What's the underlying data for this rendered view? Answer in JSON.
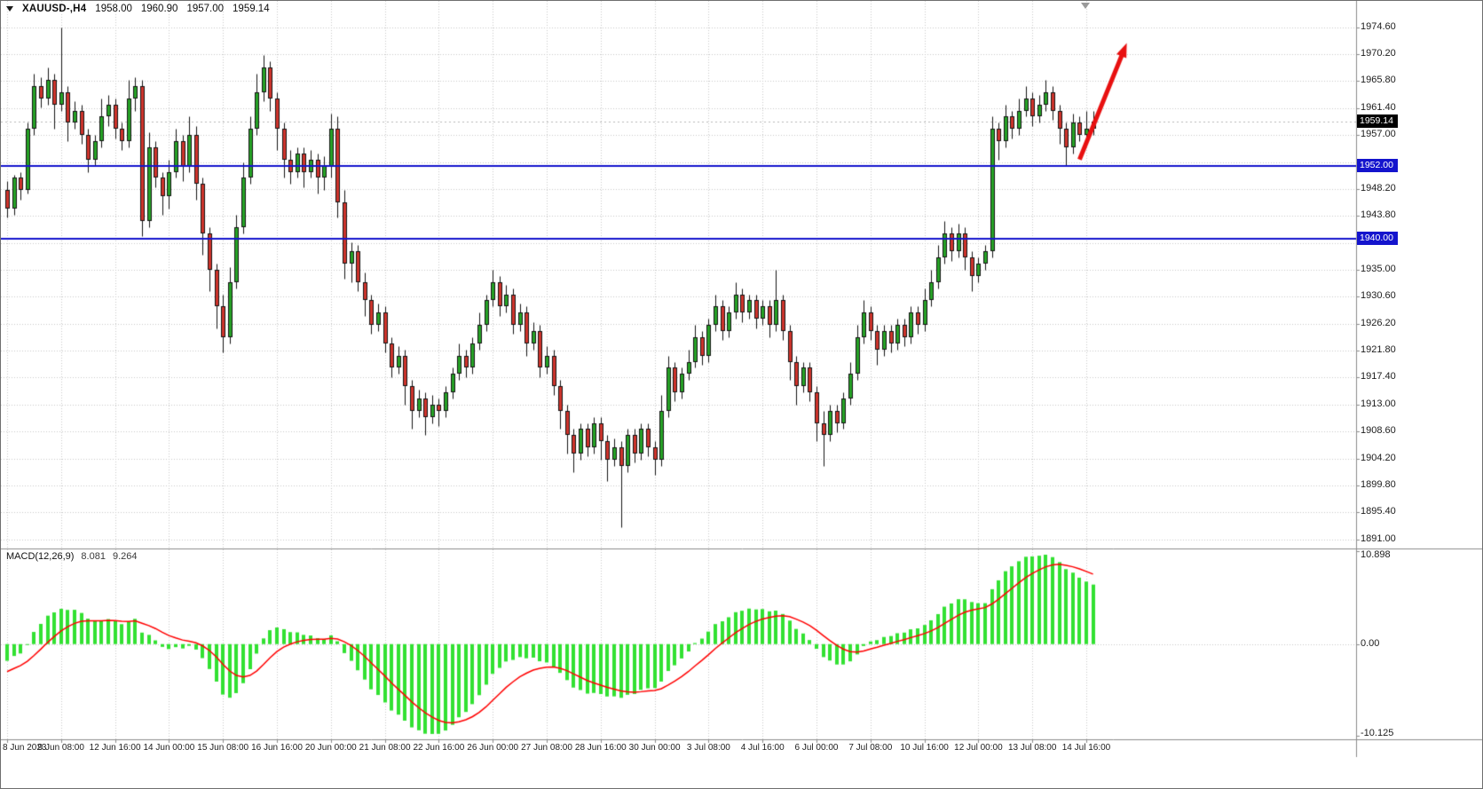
{
  "header": {
    "symbol": "XAUUSD-,H4",
    "open": "1958.00",
    "high": "1960.90",
    "low": "1957.00",
    "close": "1959.14"
  },
  "icons": {
    "chart_menu": "triangle-down",
    "shift_marker": "triangle-down"
  },
  "colors": {
    "bull": "#26a326",
    "bear": "#d0342c",
    "wick": "#141414",
    "grid": "#c8c8c8",
    "hline": "#1414cd",
    "arrow": "#e81010",
    "macd_hist": "#32e132",
    "macd_signal": "#ff0000",
    "axis_text": "#1c1c1c",
    "bid_line": "#b8b8b8",
    "current_tag_bg": "#000000",
    "axis_line": "#8c8c8c"
  },
  "chart_data": {
    "type": "candlestick",
    "title": "XAUUSD- H4 candlestick chart with MACD",
    "symbol": "XAUUSD-",
    "timeframe": "H4",
    "price_axis": {
      "max": 1978.9,
      "min": 1889.5,
      "ticks": [
        1974.6,
        1970.2,
        1965.8,
        1961.4,
        1957.0,
        1952.6,
        1948.2,
        1943.8,
        1939.4,
        1935.0,
        1930.6,
        1926.2,
        1921.8,
        1917.4,
        1913.0,
        1908.6,
        1904.2,
        1899.8,
        1895.4,
        1891.0
      ]
    },
    "time_axis": {
      "labels": [
        {
          "bar": 0,
          "text": "8 Jun 2023"
        },
        {
          "bar": 8,
          "text": "9 Jun 08:00"
        },
        {
          "bar": 16,
          "text": "12 Jun 16:00"
        },
        {
          "bar": 24,
          "text": "14 Jun 00:00"
        },
        {
          "bar": 32,
          "text": "15 Jun 08:00"
        },
        {
          "bar": 40,
          "text": "16 Jun 16:00"
        },
        {
          "bar": 48,
          "text": "20 Jun 00:00"
        },
        {
          "bar": 56,
          "text": "21 Jun 08:00"
        },
        {
          "bar": 64,
          "text": "22 Jun 16:00"
        },
        {
          "bar": 72,
          "text": "26 Jun 00:00"
        },
        {
          "bar": 80,
          "text": "27 Jun 08:00"
        },
        {
          "bar": 88,
          "text": "28 Jun 16:00"
        },
        {
          "bar": 96,
          "text": "30 Jun 00:00"
        },
        {
          "bar": 104,
          "text": "3 Jul 08:00"
        },
        {
          "bar": 112,
          "text": "4 Jul 16:00"
        },
        {
          "bar": 120,
          "text": "6 Jul 00:00"
        },
        {
          "bar": 128,
          "text": "7 Jul 08:00"
        },
        {
          "bar": 136,
          "text": "10 Jul 16:00"
        },
        {
          "bar": 144,
          "text": "12 Jul 00:00"
        },
        {
          "bar": 152,
          "text": "13 Jul 08:00"
        },
        {
          "bar": 160,
          "text": "14 Jul 16:00"
        }
      ]
    },
    "candles": [
      [
        1948,
        1949.5,
        1943.5,
        1945
      ],
      [
        1945,
        1950.5,
        1944,
        1950
      ],
      [
        1950,
        1951,
        1946.5,
        1948
      ],
      [
        1948,
        1959,
        1947.5,
        1958
      ],
      [
        1958,
        1967,
        1957,
        1965
      ],
      [
        1965,
        1966.5,
        1961.5,
        1963
      ],
      [
        1963,
        1968,
        1962,
        1966
      ],
      [
        1966,
        1967,
        1958,
        1962
      ],
      [
        1962,
        1974.5,
        1961,
        1964
      ],
      [
        1964,
        1965,
        1956,
        1959
      ],
      [
        1959,
        1962.5,
        1958,
        1961
      ],
      [
        1961,
        1962,
        1955.5,
        1957
      ],
      [
        1957,
        1958,
        1951,
        1953
      ],
      [
        1953,
        1957,
        1952,
        1956
      ],
      [
        1956,
        1963,
        1955,
        1960
      ],
      [
        1960,
        1963.5,
        1958.5,
        1962
      ],
      [
        1962,
        1963,
        1956.5,
        1958
      ],
      [
        1958,
        1959,
        1954.5,
        1956
      ],
      [
        1956,
        1966,
        1955,
        1963
      ],
      [
        1963,
        1966.5,
        1961,
        1965
      ],
      [
        1965,
        1966,
        1940.5,
        1943
      ],
      [
        1943,
        1957.5,
        1942,
        1955
      ],
      [
        1955,
        1956,
        1948.5,
        1950
      ],
      [
        1950,
        1951,
        1944,
        1947
      ],
      [
        1947,
        1953,
        1945,
        1951
      ],
      [
        1951,
        1958,
        1950,
        1956
      ],
      [
        1956,
        1957,
        1949.5,
        1952
      ],
      [
        1952,
        1960,
        1951,
        1957
      ],
      [
        1957,
        1958.5,
        1946.5,
        1949
      ],
      [
        1949,
        1950,
        1937.5,
        1941
      ],
      [
        1941,
        1942,
        1931.5,
        1935
      ],
      [
        1935,
        1936,
        1925.5,
        1929
      ],
      [
        1929,
        1931,
        1921.5,
        1924
      ],
      [
        1924,
        1935.5,
        1923,
        1933
      ],
      [
        1933,
        1944,
        1932,
        1942
      ],
      [
        1942,
        1952.5,
        1941,
        1950
      ],
      [
        1950,
        1960,
        1949,
        1958
      ],
      [
        1958,
        1967,
        1957,
        1964
      ],
      [
        1964,
        1970,
        1962.5,
        1968
      ],
      [
        1968,
        1969,
        1961,
        1963
      ],
      [
        1963,
        1964,
        1954.5,
        1958
      ],
      [
        1958,
        1959,
        1950,
        1953
      ],
      [
        1953,
        1954.5,
        1949,
        1951
      ],
      [
        1951,
        1955,
        1950,
        1954
      ],
      [
        1954,
        1955,
        1948.5,
        1951
      ],
      [
        1951,
        1954.5,
        1950,
        1953
      ],
      [
        1953,
        1954,
        1947.5,
        1950
      ],
      [
        1950,
        1953.5,
        1948,
        1952
      ],
      [
        1952,
        1960.5,
        1950,
        1958
      ],
      [
        1958,
        1960,
        1943.5,
        1946
      ],
      [
        1946,
        1948,
        1933.5,
        1936
      ],
      [
        1936,
        1939.5,
        1933,
        1938
      ],
      [
        1938,
        1939,
        1931.5,
        1933
      ],
      [
        1933,
        1934.5,
        1927.5,
        1930
      ],
      [
        1930,
        1931,
        1924.5,
        1926
      ],
      [
        1926,
        1929.5,
        1925,
        1928
      ],
      [
        1928,
        1929,
        1921.5,
        1923
      ],
      [
        1923,
        1924,
        1917.5,
        1919
      ],
      [
        1919,
        1922.5,
        1918,
        1921
      ],
      [
        1921,
        1922,
        1913,
        1916
      ],
      [
        1916,
        1917,
        1909,
        1912
      ],
      [
        1912,
        1915.5,
        1911,
        1914
      ],
      [
        1914,
        1915,
        1908,
        1911
      ],
      [
        1911,
        1914.5,
        1910,
        1913
      ],
      [
        1913,
        1914,
        1909.5,
        1912
      ],
      [
        1912,
        1916,
        1911,
        1915
      ],
      [
        1915,
        1919,
        1914,
        1918
      ],
      [
        1918,
        1923,
        1917,
        1921
      ],
      [
        1921,
        1922,
        1917.5,
        1919
      ],
      [
        1919,
        1924,
        1918,
        1923
      ],
      [
        1923,
        1928,
        1922,
        1926
      ],
      [
        1926,
        1931,
        1925,
        1930
      ],
      [
        1930,
        1935,
        1929,
        1933
      ],
      [
        1933,
        1934,
        1927.5,
        1929
      ],
      [
        1929,
        1932.5,
        1928,
        1931
      ],
      [
        1931,
        1932,
        1924.5,
        1926
      ],
      [
        1926,
        1929.5,
        1925,
        1928
      ],
      [
        1928,
        1929,
        1921,
        1923
      ],
      [
        1923,
        1926.5,
        1922,
        1925
      ],
      [
        1925,
        1926,
        1917.5,
        1919
      ],
      [
        1919,
        1922.5,
        1918,
        1921
      ],
      [
        1921,
        1922,
        1914.5,
        1916
      ],
      [
        1916,
        1917,
        1909,
        1912
      ],
      [
        1912,
        1913,
        1905,
        1908
      ],
      [
        1908,
        1909,
        1902,
        1905
      ],
      [
        1905,
        1910,
        1904,
        1909
      ],
      [
        1909,
        1910,
        1904.5,
        1906
      ],
      [
        1906,
        1911,
        1905,
        1910
      ],
      [
        1910,
        1911,
        1904,
        1907
      ],
      [
        1907,
        1908,
        1900.5,
        1904
      ],
      [
        1904,
        1907.5,
        1903,
        1906
      ],
      [
        1906,
        1907,
        1893,
        1903
      ],
      [
        1903,
        1909,
        1902,
        1908
      ],
      [
        1908,
        1909,
        1903.5,
        1905
      ],
      [
        1905,
        1910,
        1904,
        1909
      ],
      [
        1909,
        1910,
        1904.5,
        1906
      ],
      [
        1906,
        1907,
        1901.5,
        1904
      ],
      [
        1904,
        1914.5,
        1903,
        1912
      ],
      [
        1912,
        1921,
        1911,
        1919
      ],
      [
        1919,
        1920,
        1913.5,
        1915
      ],
      [
        1915,
        1919,
        1914,
        1918
      ],
      [
        1918,
        1922,
        1917,
        1920
      ],
      [
        1920,
        1926,
        1919,
        1924
      ],
      [
        1924,
        1925,
        1919.5,
        1921
      ],
      [
        1921,
        1927,
        1920,
        1926
      ],
      [
        1926,
        1931,
        1925,
        1929
      ],
      [
        1929,
        1930,
        1923.5,
        1925
      ],
      [
        1925,
        1929,
        1924,
        1928
      ],
      [
        1928,
        1933,
        1927,
        1931
      ],
      [
        1931,
        1932,
        1926.5,
        1928
      ],
      [
        1928,
        1931,
        1927,
        1930
      ],
      [
        1930,
        1931,
        1925.5,
        1927
      ],
      [
        1927,
        1930,
        1926,
        1929
      ],
      [
        1929,
        1930,
        1924,
        1926
      ],
      [
        1926,
        1935,
        1925,
        1930
      ],
      [
        1930,
        1931,
        1923.5,
        1925
      ],
      [
        1925,
        1926,
        1917,
        1920
      ],
      [
        1920,
        1921,
        1913,
        1916
      ],
      [
        1916,
        1920,
        1915,
        1919
      ],
      [
        1919,
        1920,
        1913.5,
        1915
      ],
      [
        1915,
        1916,
        1907,
        1910
      ],
      [
        1910,
        1912,
        1903,
        1908
      ],
      [
        1908,
        1913,
        1907,
        1912
      ],
      [
        1912,
        1913,
        1908.5,
        1910
      ],
      [
        1910,
        1915,
        1909,
        1914
      ],
      [
        1914,
        1920,
        1913,
        1918
      ],
      [
        1918,
        1926,
        1917,
        1924
      ],
      [
        1924,
        1930,
        1923,
        1928
      ],
      [
        1928,
        1929,
        1923.5,
        1925
      ],
      [
        1925,
        1926,
        1919.5,
        1922
      ],
      [
        1922,
        1926,
        1921,
        1925
      ],
      [
        1925,
        1926,
        1921.5,
        1923
      ],
      [
        1923,
        1927,
        1922,
        1926
      ],
      [
        1926,
        1927,
        1922.5,
        1924
      ],
      [
        1924,
        1929,
        1923,
        1928
      ],
      [
        1928,
        1929,
        1924.5,
        1926
      ],
      [
        1926,
        1932,
        1925,
        1930
      ],
      [
        1930,
        1935,
        1929,
        1933
      ],
      [
        1933,
        1939,
        1932,
        1937
      ],
      [
        1937,
        1943,
        1936,
        1941
      ],
      [
        1941,
        1942,
        1936.5,
        1938
      ],
      [
        1938,
        1942.5,
        1937,
        1941
      ],
      [
        1941,
        1942,
        1935,
        1937
      ],
      [
        1937,
        1938,
        1931.5,
        1934
      ],
      [
        1934,
        1937,
        1933,
        1936
      ],
      [
        1936,
        1939,
        1935,
        1938
      ],
      [
        1938,
        1960,
        1937,
        1958
      ],
      [
        1958,
        1959,
        1953,
        1956
      ],
      [
        1956,
        1962,
        1955,
        1960
      ],
      [
        1960,
        1961,
        1956.5,
        1958
      ],
      [
        1958,
        1963,
        1957,
        1961
      ],
      [
        1961,
        1965,
        1960,
        1963
      ],
      [
        1963,
        1964,
        1958.5,
        1960
      ],
      [
        1960,
        1963.5,
        1959,
        1962
      ],
      [
        1962,
        1966,
        1961,
        1964
      ],
      [
        1964,
        1965,
        1959.5,
        1961
      ],
      [
        1961,
        1962,
        1955.5,
        1958
      ],
      [
        1958,
        1959,
        1952,
        1955
      ],
      [
        1955,
        1960.5,
        1954,
        1959
      ],
      [
        1959,
        1960,
        1956,
        1957
      ],
      [
        1957,
        1961,
        1956,
        1958
      ],
      [
        1958,
        1960.9,
        1957,
        1959.14
      ]
    ],
    "current_price": 1959.14,
    "current_price_label": "1959.14",
    "horizontal_lines": [
      {
        "price": 1952.0,
        "label": "1952.00"
      },
      {
        "price": 1940.0,
        "label": "1940.00"
      }
    ],
    "trend_arrow": {
      "from_bar": 159,
      "from_price": 1953,
      "to_bar": 166,
      "to_price": 1972
    },
    "macd": {
      "title": "MACD(12,26,9)",
      "value_main": "8.081",
      "value_signal": "9.264",
      "params": {
        "fast": 12,
        "slow": 26,
        "signal": 9
      },
      "axis": {
        "max": 10.898,
        "min": -10.125,
        "ticks": [
          {
            "v": 10.898,
            "text": "10.898"
          },
          {
            "v": 0,
            "text": "0.00"
          },
          {
            "v": -10.125,
            "text": "-10.125"
          }
        ]
      }
    }
  }
}
